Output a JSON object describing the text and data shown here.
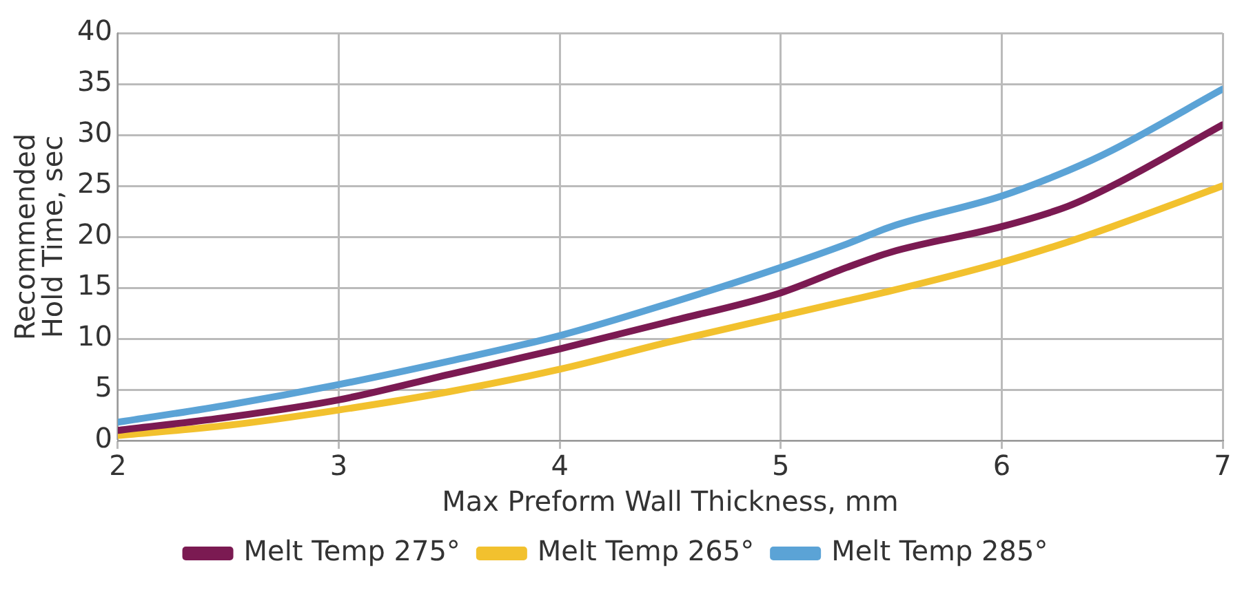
{
  "chart_data": {
    "type": "line",
    "xlabel": "Max Preform Wall Thickness, mm",
    "ylabel": "Recommended Hold Time, sec",
    "x": [
      2,
      2.5,
      3,
      3.5,
      4,
      4.5,
      5,
      5.3,
      5.5,
      6,
      6.3,
      6.5,
      7
    ],
    "series": [
      {
        "name": "Melt Temp 275°",
        "color": "#7b1a52",
        "values": [
          1,
          2.3,
          4,
          6.5,
          9,
          11.7,
          14.5,
          17,
          18.5,
          21,
          23,
          25,
          31
        ]
      },
      {
        "name": "Melt Temp 265°",
        "color": "#f2c12e",
        "values": [
          0.5,
          1.5,
          3,
          4.8,
          7,
          9.7,
          12.2,
          13.7,
          14.7,
          17.5,
          19.5,
          21,
          25
        ]
      },
      {
        "name": "Melt Temp 285°",
        "color": "#5ba3d6",
        "values": [
          1.8,
          3.5,
          5.5,
          7.8,
          10.3,
          13.5,
          17,
          19.3,
          21,
          24,
          26.5,
          28.5,
          34.5
        ]
      }
    ],
    "xlim": [
      2,
      7
    ],
    "xticks": [
      2,
      3,
      4,
      5,
      6,
      7
    ],
    "ylim": [
      0,
      40
    ],
    "yticks": [
      0,
      5,
      10,
      15,
      20,
      25,
      30,
      35,
      40
    ],
    "grid": true,
    "legend": "bottom",
    "marker": "none",
    "line_style": "solid"
  }
}
